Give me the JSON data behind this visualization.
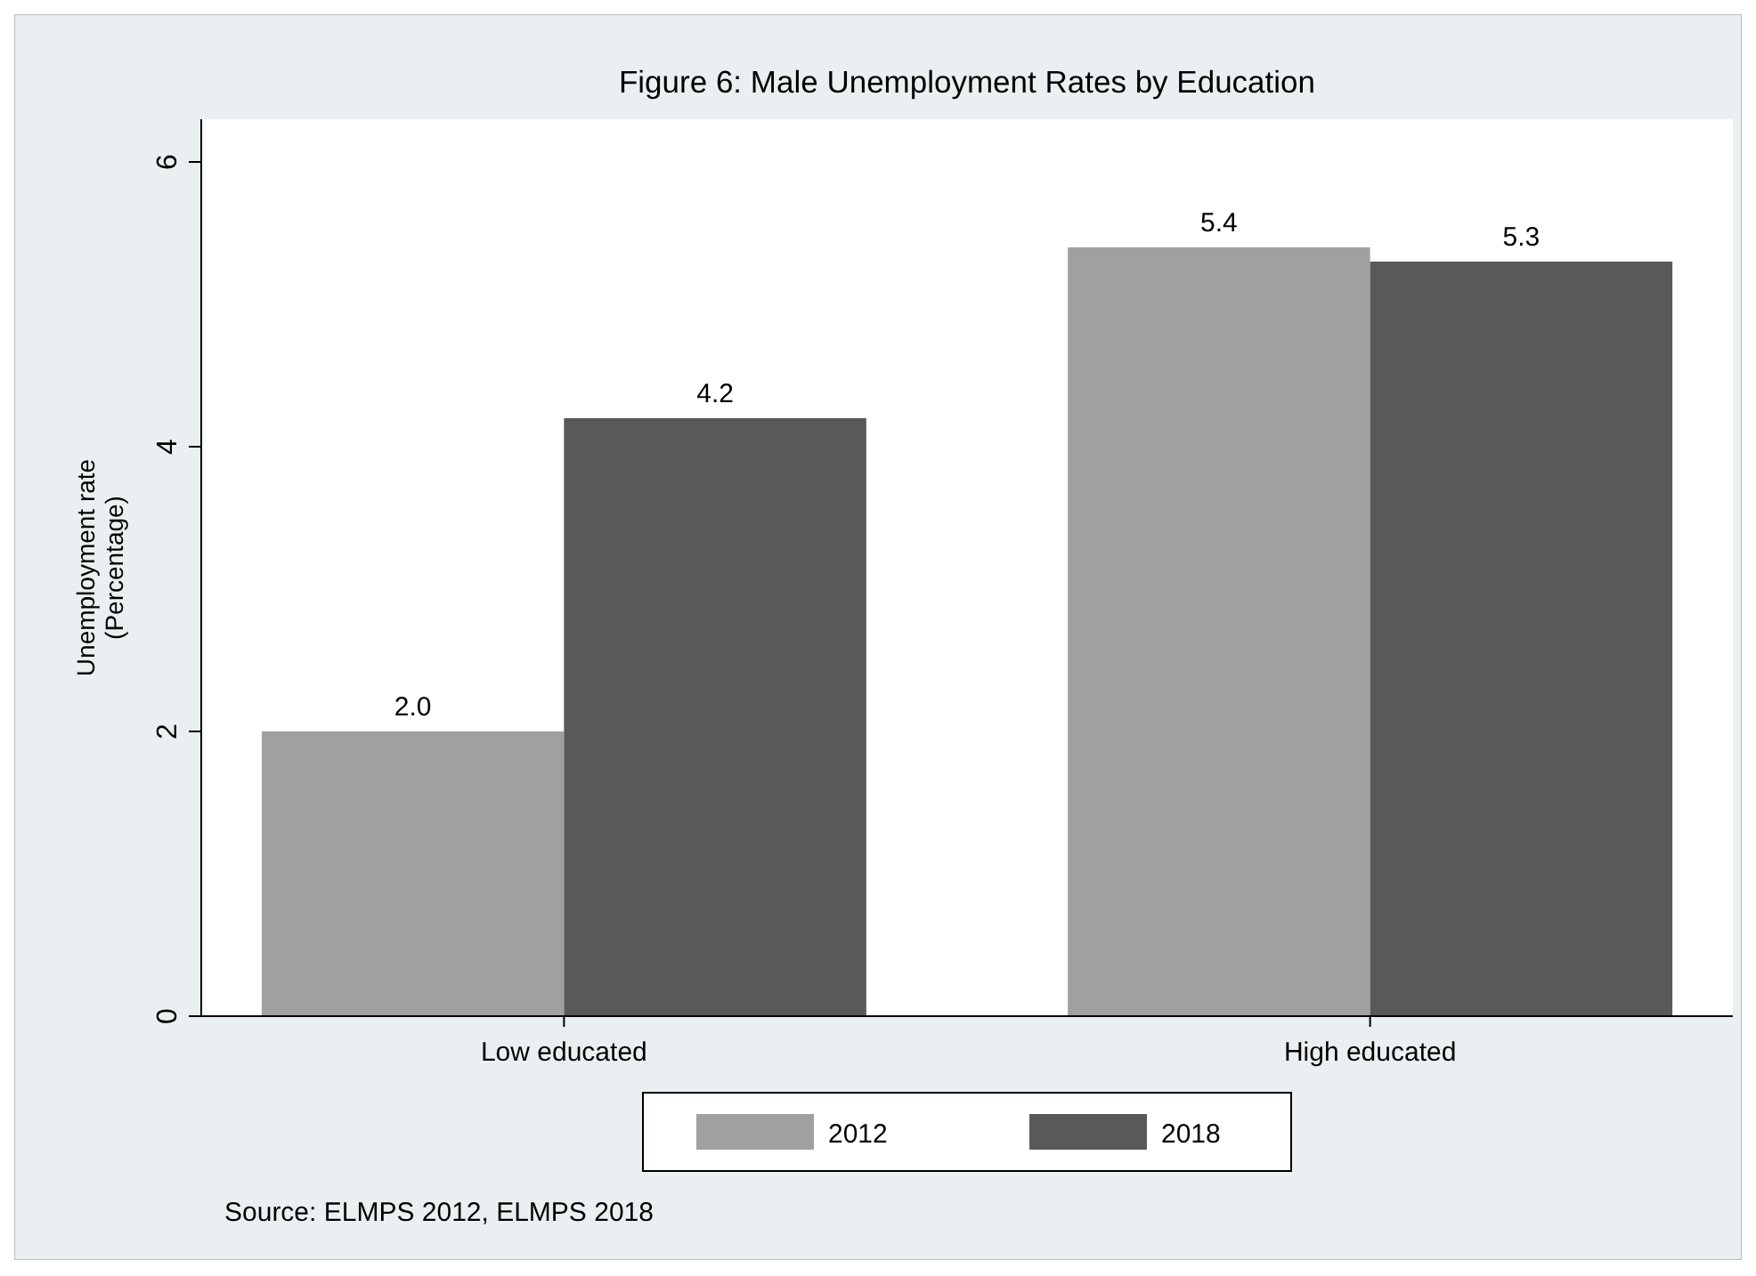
{
  "chart_data": {
    "type": "bar",
    "title": "Figure 6: Male Unemployment Rates by Education",
    "ylabel": "Unemployment rate\n(Percentage)",
    "categories": [
      "Low educated",
      "High educated"
    ],
    "series": [
      {
        "name": "2012",
        "color": "#a0a0a0",
        "values": [
          2.0,
          5.4
        ],
        "value_labels": [
          "2.0",
          "5.4"
        ]
      },
      {
        "name": "2018",
        "color": "#595959",
        "values": [
          4.2,
          5.3
        ],
        "value_labels": [
          "4.2",
          "5.3"
        ]
      }
    ],
    "ylim": [
      0,
      6.3
    ],
    "yticks": [
      0,
      2,
      4,
      6
    ],
    "grid": false,
    "legend": "bottom",
    "annotations": [
      "Source: ELMPS 2012, ELMPS 2018"
    ]
  }
}
